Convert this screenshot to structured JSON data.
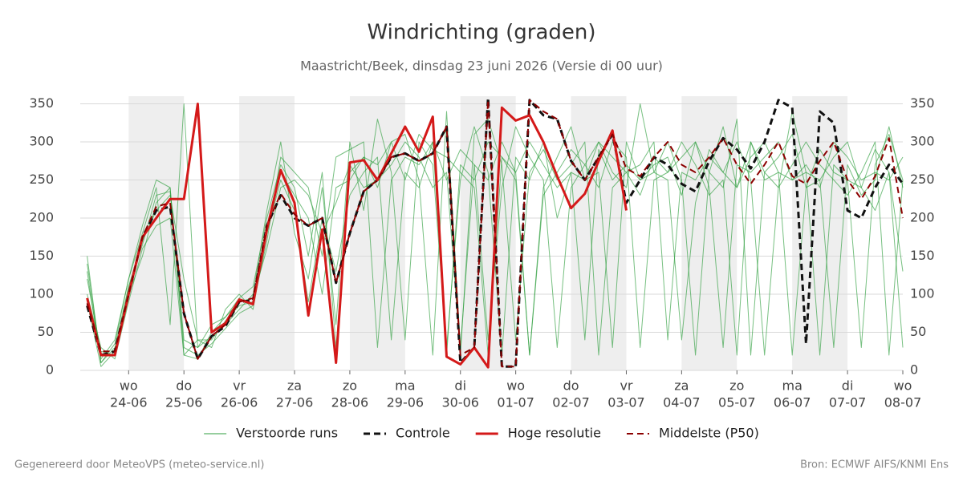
{
  "chart_data": {
    "type": "line",
    "title": "Windrichting (graden)",
    "subtitle": "Maastricht/Beek, dinsdag 23 juni 2026 (Versie di 00 uur)",
    "credit": "Gegenereerd door MeteoVPS (meteo-service.nl)",
    "source": "Bron: ECMWF AIFS/KNMI Ens",
    "x": [
      0.25,
      0.5,
      0.75,
      1,
      1.25,
      1.5,
      1.75,
      2,
      2.25,
      2.5,
      2.75,
      3,
      3.25,
      3.5,
      3.75,
      4,
      4.25,
      4.5,
      4.75,
      5,
      5.25,
      5.5,
      5.75,
      6,
      6.25,
      6.5,
      6.75,
      7,
      7.25,
      7.5,
      7.75,
      8,
      8.25,
      8.5,
      8.75,
      9,
      9.25,
      9.5,
      9.75,
      10,
      10.25,
      10.5,
      10.75,
      11,
      11.25,
      11.5,
      11.75,
      12,
      12.25,
      12.5,
      12.75,
      13,
      13.25,
      13.5,
      13.75,
      14,
      14.25,
      14.5,
      14.75,
      15
    ],
    "xlim": [
      0.125,
      15
    ],
    "xticks": [
      {
        "value": 1,
        "label": "24-06"
      },
      {
        "value": 2,
        "label": "25-06"
      },
      {
        "value": 3,
        "label": "26-06"
      },
      {
        "value": 4,
        "label": "27-06"
      },
      {
        "value": 5,
        "label": "28-06"
      },
      {
        "value": 6,
        "label": "29-06"
      },
      {
        "value": 7,
        "label": "30-06"
      },
      {
        "value": 8,
        "label": "01-07"
      },
      {
        "value": 9,
        "label": "02-07"
      },
      {
        "value": 10,
        "label": "03-07"
      },
      {
        "value": 11,
        "label": "04-07"
      },
      {
        "value": 12,
        "label": "05-07"
      },
      {
        "value": 13,
        "label": "06-07"
      },
      {
        "value": 14,
        "label": "07-07"
      },
      {
        "value": 15,
        "label": "08-07"
      }
    ],
    "xtick_days": [
      "wo",
      "do",
      "vr",
      "za",
      "zo",
      "ma",
      "di",
      "wo",
      "do",
      "vr",
      "za",
      "zo",
      "ma",
      "di",
      "wo"
    ],
    "ylim": [
      0,
      360
    ],
    "yticks": [
      0,
      50,
      100,
      150,
      200,
      250,
      300,
      350
    ],
    "grid": true,
    "ensemble": {
      "name": "Verstoorde runs",
      "color": "#2e9e3e",
      "members": [
        [
          130,
          10,
          30,
          110,
          165,
          230,
          235,
          40,
          30,
          60,
          70,
          95,
          110,
          200,
          270,
          240,
          150,
          260,
          30,
          260,
          280,
          240,
          300,
          310,
          250,
          20,
          340,
          30,
          270,
          250,
          300,
          260,
          20,
          240,
          280,
          320,
          250,
          260,
          30,
          300,
          250,
          270,
          280,
          230,
          300,
          260,
          240,
          330,
          20,
          260,
          280,
          310,
          240,
          250,
          30,
          270,
          230,
          250,
          320,
          240
        ],
        [
          100,
          30,
          15,
          90,
          160,
          190,
          200,
          20,
          40,
          30,
          80,
          100,
          80,
          180,
          250,
          210,
          90,
          200,
          130,
          230,
          260,
          280,
          40,
          260,
          240,
          300,
          250,
          290,
          270,
          40,
          240,
          320,
          280,
          250,
          30,
          240,
          270,
          300,
          260,
          240,
          350,
          260,
          250,
          40,
          220,
          290,
          260,
          300,
          250,
          20,
          240,
          340,
          260,
          250,
          280,
          300,
          240,
          210,
          260,
          130
        ],
        [
          140,
          15,
          40,
          120,
          180,
          240,
          60,
          350,
          30,
          45,
          60,
          80,
          100,
          210,
          300,
          180,
          120,
          240,
          60,
          300,
          210,
          330,
          260,
          40,
          300,
          270,
          30,
          250,
          320,
          260,
          20,
          280,
          250,
          300,
          200,
          260,
          40,
          290,
          250,
          270,
          250,
          260,
          300,
          250,
          20,
          260,
          320,
          240,
          300,
          250,
          260,
          20,
          240,
          290,
          260,
          250,
          30,
          270,
          310,
          250
        ],
        [
          90,
          5,
          25,
          100,
          150,
          220,
          240,
          20,
          15,
          50,
          70,
          90,
          95,
          160,
          240,
          250,
          230,
          180,
          220,
          270,
          240,
          250,
          270,
          300,
          280,
          240,
          260,
          20,
          310,
          330,
          270,
          40,
          260,
          290,
          250,
          270,
          300,
          20,
          240,
          260,
          230,
          280,
          260,
          300,
          270,
          230,
          250,
          20,
          300,
          260,
          240,
          270,
          300,
          270,
          250,
          230,
          260,
          300,
          20,
          250
        ],
        [
          120,
          25,
          20,
          110,
          170,
          210,
          230,
          120,
          40,
          40,
          65,
          85,
          90,
          190,
          260,
          230,
          200,
          100,
          240,
          250,
          280,
          270,
          300,
          250,
          310,
          290,
          280,
          260,
          240,
          20,
          280,
          260,
          300,
          270,
          240,
          260,
          250,
          300,
          280,
          260,
          270,
          300,
          40,
          260,
          250,
          280,
          260,
          240,
          280,
          300,
          260,
          250,
          270,
          240,
          300,
          280,
          250,
          260,
          250,
          280
        ],
        [
          150,
          10,
          35,
          120,
          190,
          250,
          240,
          30,
          20,
          35,
          55,
          75,
          85,
          170,
          280,
          260,
          240,
          150,
          280,
          290,
          300,
          30,
          250,
          280,
          270,
          300,
          20,
          270,
          250,
          300,
          280,
          250,
          20,
          230,
          260,
          290,
          270,
          240,
          300,
          280,
          30,
          250,
          260,
          280,
          300,
          240,
          30,
          270,
          260,
          280,
          300,
          250,
          260,
          20,
          270,
          250,
          240,
          290,
          260,
          30
        ]
      ]
    },
    "series": [
      {
        "name": "Controle",
        "color": "#111111",
        "dashed": true,
        "width": 3,
        "values": [
          85,
          20,
          25,
          100,
          175,
          210,
          215,
          75,
          15,
          45,
          58,
          90,
          92,
          190,
          230,
          200,
          190,
          200,
          115,
          180,
          235,
          250,
          280,
          285,
          275,
          285,
          320,
          10,
          30,
          358,
          5,
          5,
          355,
          335,
          330,
          275,
          250,
          280,
          310,
          220,
          250,
          280,
          270,
          245,
          235,
          275,
          305,
          290,
          265,
          300,
          355,
          345,
          35,
          340,
          325,
          210,
          200,
          240,
          270,
          245
        ]
      },
      {
        "name": "Hoge resolutie",
        "color": "#d41919",
        "dashed": false,
        "width": 3,
        "values": [
          95,
          20,
          20,
          100,
          175,
          200,
          225,
          225,
          350,
          50,
          62,
          93,
          87,
          185,
          263,
          220,
          72,
          185,
          10,
          273,
          276,
          250,
          285,
          320,
          287,
          333,
          18,
          8,
          30,
          4,
          345,
          328,
          335,
          300,
          255,
          213,
          232,
          275,
          315,
          210,
          null,
          null,
          null,
          null,
          null,
          null,
          null,
          null,
          null,
          null,
          null,
          null,
          null,
          null,
          null,
          null,
          null,
          null,
          null,
          null
        ]
      },
      {
        "name": "Middelste (P50)",
        "color": "#8b0000",
        "dashed": true,
        "width": 2,
        "values": [
          88,
          25,
          25,
          100,
          175,
          215,
          220,
          75,
          15,
          45,
          60,
          90,
          95,
          190,
          232,
          205,
          190,
          200,
          115,
          180,
          235,
          250,
          280,
          285,
          275,
          285,
          320,
          20,
          30,
          355,
          5,
          5,
          355,
          340,
          330,
          275,
          250,
          280,
          310,
          265,
          255,
          280,
          300,
          270,
          260,
          280,
          305,
          270,
          245,
          270,
          300,
          255,
          245,
          275,
          300,
          250,
          225,
          255,
          305,
          200
        ]
      }
    ]
  }
}
